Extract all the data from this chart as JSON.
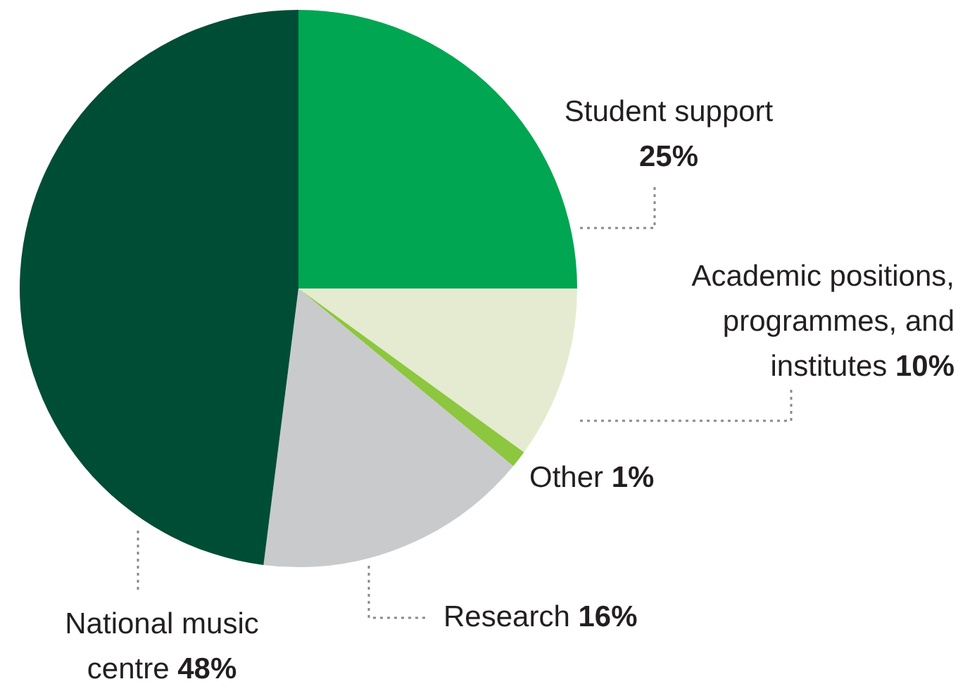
{
  "chart_data": {
    "type": "pie",
    "categories": [
      "Student support",
      "Academic positions, programmes, and institutes",
      "Other",
      "Research",
      "National music centre"
    ],
    "values": [
      25,
      10,
      1,
      16,
      48
    ],
    "colors": [
      "#00a651",
      "#e4ebd0",
      "#8dc63f",
      "#c9cacc",
      "#004d36"
    ],
    "value_labels": [
      "25%",
      "10%",
      "1%",
      "16%",
      "48%"
    ],
    "legend": false
  }
}
